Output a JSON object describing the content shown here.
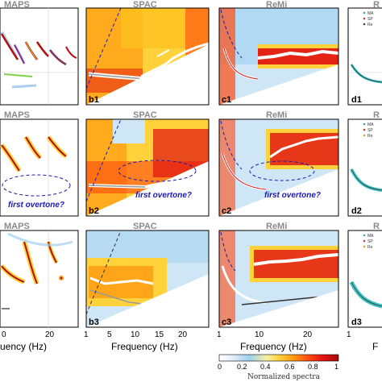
{
  "chart_data": {
    "type": "heatmap",
    "layout": "3x4 grid of dispersion-image panels (rows 1-3, columns MAPS | SPAC | ReMi | d)",
    "column_titles": [
      "MAPS",
      "SPAC",
      "ReMi",
      "R"
    ],
    "panel_labels": [
      [
        "",
        "b1",
        "c1",
        "d1"
      ],
      [
        "",
        "b2",
        "c2",
        "d2"
      ],
      [
        "",
        "b3",
        "c3",
        "d3"
      ]
    ],
    "annotations": {
      "row2_text": "first overtone?"
    },
    "x_axis": {
      "label": "Frequency (Hz)",
      "partial_label_left": "uency (Hz)",
      "partial_label_right": "F",
      "maps_ticks": [
        "0",
        "20"
      ],
      "spac_ticks": [
        "1",
        "5",
        "10",
        "15",
        "20"
      ],
      "remi_ticks": [
        "1",
        "10",
        "20"
      ],
      "d_ticks": [
        "1"
      ]
    },
    "colorbar": {
      "label": "Normalized spectra",
      "ticks": [
        "0",
        "0.2",
        "0.4",
        "0.6",
        "0.8",
        "1"
      ],
      "colors": [
        "#ffffff",
        "#e8f1fb",
        "#9fd0f0",
        "#f5f0a0",
        "#ffd23c",
        "#ff9a10",
        "#ff4a10",
        "#e01010",
        "#a80a0a"
      ]
    },
    "legend_entries_d": [
      "MA",
      "SP",
      "Re"
    ]
  }
}
